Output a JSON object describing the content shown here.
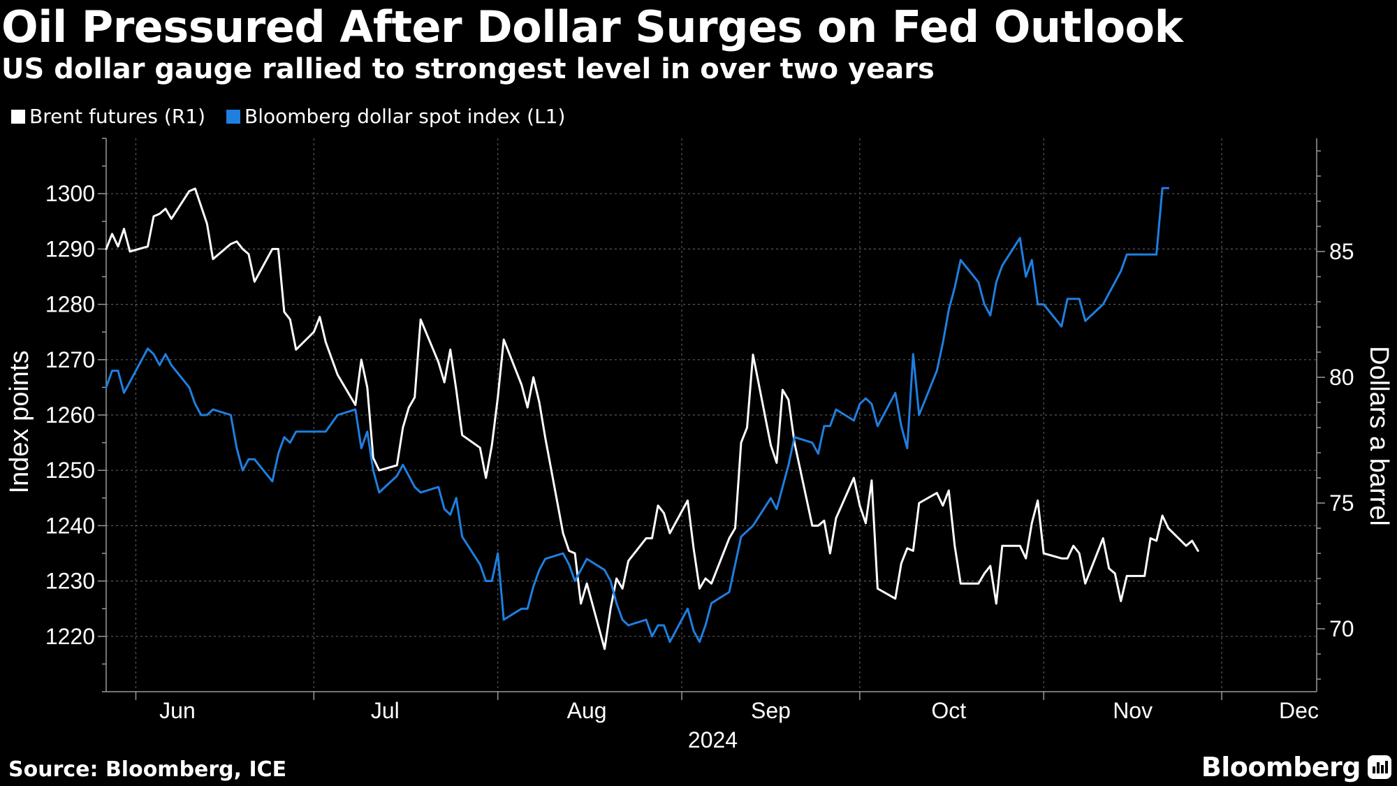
{
  "header": {
    "title": "Oil Pressured After Dollar Surges on Fed Outlook",
    "subtitle": "US dollar gauge rallied to strongest level in over two years"
  },
  "legend": {
    "items": [
      {
        "label": "Brent futures (R1)",
        "color": "#ffffff"
      },
      {
        "label": "Bloomberg dollar spot index (L1)",
        "color": "#1f7fe0"
      }
    ]
  },
  "footer": {
    "source": "Source: Bloomberg, ICE",
    "brand": "Bloomberg"
  },
  "chart_data": {
    "type": "line",
    "title": "Oil Pressured After Dollar Surges on Fed Outlook",
    "subtitle": "US dollar gauge rallied to strongest level in over two years",
    "x_type": "date",
    "year_label": "2024",
    "x_range": [
      "2024-05-27",
      "2024-12-17"
    ],
    "month_labels": [
      {
        "label": "Jun",
        "date": "2024-06-08"
      },
      {
        "label": "Jul",
        "date": "2024-07-13"
      },
      {
        "label": "Aug",
        "date": "2024-08-16"
      },
      {
        "label": "Sep",
        "date": "2024-09-16"
      },
      {
        "label": "Oct",
        "date": "2024-10-16"
      },
      {
        "label": "Nov",
        "date": "2024-11-16"
      },
      {
        "label": "Dec",
        "date": "2024-12-14"
      }
    ],
    "month_boundaries": [
      "2024-06-01",
      "2024-07-01",
      "2024-08-01",
      "2024-09-01",
      "2024-10-01",
      "2024-11-01",
      "2024-12-01"
    ],
    "left_axis": {
      "label": "Index points",
      "min": 1210,
      "max": 1310,
      "ticks": [
        1220,
        1230,
        1240,
        1250,
        1260,
        1270,
        1280,
        1290,
        1300
      ]
    },
    "right_axis": {
      "label": "Dollars a barrel",
      "min": 67.5,
      "max": 89.5,
      "ticks": [
        70,
        75,
        80,
        85
      ]
    },
    "grid": true,
    "legend_position": "top-left",
    "series": [
      {
        "name": "Brent futures (R1)",
        "axis": "right",
        "color": "#ffffff",
        "points": [
          [
            "2024-05-27",
            85.1
          ],
          [
            "2024-05-28",
            85.7
          ],
          [
            "2024-05-29",
            85.2
          ],
          [
            "2024-05-30",
            85.9
          ],
          [
            "2024-05-31",
            85.0
          ],
          [
            "2024-06-03",
            85.2
          ],
          [
            "2024-06-04",
            86.4
          ],
          [
            "2024-06-05",
            86.5
          ],
          [
            "2024-06-06",
            86.7
          ],
          [
            "2024-06-07",
            86.3
          ],
          [
            "2024-06-10",
            87.4
          ],
          [
            "2024-06-11",
            87.5
          ],
          [
            "2024-06-12",
            86.8
          ],
          [
            "2024-06-13",
            86.1
          ],
          [
            "2024-06-14",
            84.7
          ],
          [
            "2024-06-17",
            85.3
          ],
          [
            "2024-06-18",
            85.4
          ],
          [
            "2024-06-19",
            85.1
          ],
          [
            "2024-06-20",
            84.9
          ],
          [
            "2024-06-21",
            83.8
          ],
          [
            "2024-06-24",
            85.1
          ],
          [
            "2024-06-25",
            85.1
          ],
          [
            "2024-06-26",
            82.6
          ],
          [
            "2024-06-27",
            82.3
          ],
          [
            "2024-06-28",
            81.1
          ],
          [
            "2024-07-01",
            81.8
          ],
          [
            "2024-07-02",
            82.4
          ],
          [
            "2024-07-03",
            81.4
          ],
          [
            "2024-07-05",
            80.1
          ],
          [
            "2024-07-08",
            78.9
          ],
          [
            "2024-07-09",
            80.7
          ],
          [
            "2024-07-10",
            79.6
          ],
          [
            "2024-07-11",
            76.8
          ],
          [
            "2024-07-12",
            76.3
          ],
          [
            "2024-07-15",
            76.5
          ],
          [
            "2024-07-16",
            78.0
          ],
          [
            "2024-07-17",
            78.8
          ],
          [
            "2024-07-18",
            79.2
          ],
          [
            "2024-07-19",
            82.3
          ],
          [
            "2024-07-22",
            80.6
          ],
          [
            "2024-07-23",
            79.8
          ],
          [
            "2024-07-24",
            81.1
          ],
          [
            "2024-07-25",
            79.5
          ],
          [
            "2024-07-26",
            77.7
          ],
          [
            "2024-07-29",
            77.2
          ],
          [
            "2024-07-30",
            76.0
          ],
          [
            "2024-07-31",
            77.3
          ],
          [
            "2024-08-01",
            79.2
          ],
          [
            "2024-08-02",
            81.5
          ],
          [
            "2024-08-05",
            79.7
          ],
          [
            "2024-08-06",
            78.8
          ],
          [
            "2024-08-07",
            80.0
          ],
          [
            "2024-08-08",
            79.0
          ],
          [
            "2024-08-09",
            77.6
          ],
          [
            "2024-08-12",
            73.8
          ],
          [
            "2024-08-13",
            73.1
          ],
          [
            "2024-08-14",
            73.0
          ],
          [
            "2024-08-15",
            71.0
          ],
          [
            "2024-08-16",
            71.8
          ],
          [
            "2024-08-19",
            69.2
          ],
          [
            "2024-08-20",
            70.8
          ],
          [
            "2024-08-21",
            72.0
          ],
          [
            "2024-08-22",
            71.6
          ],
          [
            "2024-08-23",
            72.7
          ],
          [
            "2024-08-26",
            73.6
          ],
          [
            "2024-08-27",
            73.6
          ],
          [
            "2024-08-28",
            74.9
          ],
          [
            "2024-08-29",
            74.6
          ],
          [
            "2024-08-30",
            73.8
          ],
          [
            "2024-09-02",
            75.1
          ],
          [
            "2024-09-03",
            73.2
          ],
          [
            "2024-09-04",
            71.6
          ],
          [
            "2024-09-05",
            72.0
          ],
          [
            "2024-09-06",
            71.8
          ],
          [
            "2024-09-09",
            73.6
          ],
          [
            "2024-09-10",
            74.0
          ],
          [
            "2024-09-11",
            77.4
          ],
          [
            "2024-09-12",
            78.0
          ],
          [
            "2024-09-13",
            80.9
          ],
          [
            "2024-09-16",
            77.3
          ],
          [
            "2024-09-17",
            76.6
          ],
          [
            "2024-09-18",
            79.5
          ],
          [
            "2024-09-19",
            79.1
          ],
          [
            "2024-09-20",
            77.4
          ],
          [
            "2024-09-23",
            74.1
          ],
          [
            "2024-09-24",
            74.1
          ],
          [
            "2024-09-25",
            74.3
          ],
          [
            "2024-09-26",
            73.0
          ],
          [
            "2024-09-27",
            74.4
          ],
          [
            "2024-09-30",
            76.0
          ],
          [
            "2024-10-01",
            74.9
          ],
          [
            "2024-10-02",
            74.2
          ],
          [
            "2024-10-03",
            75.9
          ],
          [
            "2024-10-04",
            71.6
          ],
          [
            "2024-10-07",
            71.2
          ],
          [
            "2024-10-08",
            72.6
          ],
          [
            "2024-10-09",
            73.2
          ],
          [
            "2024-10-10",
            73.1
          ],
          [
            "2024-10-11",
            75.0
          ],
          [
            "2024-10-14",
            75.4
          ],
          [
            "2024-10-15",
            74.9
          ],
          [
            "2024-10-16",
            75.5
          ],
          [
            "2024-10-17",
            73.3
          ],
          [
            "2024-10-18",
            71.8
          ],
          [
            "2024-10-21",
            71.8
          ],
          [
            "2024-10-22",
            72.2
          ],
          [
            "2024-10-23",
            72.5
          ],
          [
            "2024-10-24",
            71.0
          ],
          [
            "2024-10-25",
            73.3
          ],
          [
            "2024-10-28",
            73.3
          ],
          [
            "2024-10-29",
            72.8
          ],
          [
            "2024-10-30",
            74.2
          ],
          [
            "2024-10-31",
            75.1
          ],
          [
            "2024-11-01",
            73.0
          ],
          [
            "2024-11-04",
            72.8
          ],
          [
            "2024-11-05",
            72.8
          ],
          [
            "2024-11-06",
            73.3
          ],
          [
            "2024-11-07",
            73.0
          ],
          [
            "2024-11-08",
            71.8
          ],
          [
            "2024-11-11",
            73.6
          ],
          [
            "2024-11-12",
            72.4
          ],
          [
            "2024-11-13",
            72.2
          ],
          [
            "2024-11-14",
            71.1
          ],
          [
            "2024-11-15",
            72.1
          ],
          [
            "2024-11-18",
            72.1
          ],
          [
            "2024-11-19",
            73.6
          ],
          [
            "2024-11-20",
            73.5
          ],
          [
            "2024-11-21",
            74.5
          ],
          [
            "2024-11-22",
            74.0
          ],
          [
            "2024-11-25",
            73.3
          ],
          [
            "2024-11-26",
            73.5
          ],
          [
            "2024-11-27",
            73.1
          ]
        ]
      },
      {
        "name": "Bloomberg dollar spot index (L1)",
        "axis": "left",
        "color": "#1f7fe0",
        "points": [
          [
            "2024-05-27",
            1265
          ],
          [
            "2024-05-28",
            1268
          ],
          [
            "2024-05-29",
            1268
          ],
          [
            "2024-05-30",
            1264
          ],
          [
            "2024-05-31",
            1266
          ],
          [
            "2024-06-03",
            1272
          ],
          [
            "2024-06-04",
            1271
          ],
          [
            "2024-06-05",
            1269
          ],
          [
            "2024-06-06",
            1271
          ],
          [
            "2024-06-07",
            1269
          ],
          [
            "2024-06-10",
            1265
          ],
          [
            "2024-06-11",
            1262
          ],
          [
            "2024-06-12",
            1260
          ],
          [
            "2024-06-13",
            1260
          ],
          [
            "2024-06-14",
            1261
          ],
          [
            "2024-06-17",
            1260
          ],
          [
            "2024-06-18",
            1254
          ],
          [
            "2024-06-19",
            1250
          ],
          [
            "2024-06-20",
            1252
          ],
          [
            "2024-06-21",
            1252
          ],
          [
            "2024-06-24",
            1248
          ],
          [
            "2024-06-25",
            1253
          ],
          [
            "2024-06-26",
            1256
          ],
          [
            "2024-06-27",
            1255
          ],
          [
            "2024-06-28",
            1257
          ],
          [
            "2024-07-01",
            1257
          ],
          [
            "2024-07-02",
            1257
          ],
          [
            "2024-07-03",
            1257
          ],
          [
            "2024-07-05",
            1260
          ],
          [
            "2024-07-08",
            1261
          ],
          [
            "2024-07-09",
            1254
          ],
          [
            "2024-07-10",
            1257
          ],
          [
            "2024-07-11",
            1250
          ],
          [
            "2024-07-12",
            1246
          ],
          [
            "2024-07-15",
            1249
          ],
          [
            "2024-07-16",
            1251
          ],
          [
            "2024-07-17",
            1249
          ],
          [
            "2024-07-18",
            1247
          ],
          [
            "2024-07-19",
            1246
          ],
          [
            "2024-07-22",
            1247
          ],
          [
            "2024-07-23",
            1243
          ],
          [
            "2024-07-24",
            1242
          ],
          [
            "2024-07-25",
            1245
          ],
          [
            "2024-07-26",
            1238
          ],
          [
            "2024-07-29",
            1233
          ],
          [
            "2024-07-30",
            1230
          ],
          [
            "2024-07-31",
            1230
          ],
          [
            "2024-08-01",
            1235
          ],
          [
            "2024-08-02",
            1223
          ],
          [
            "2024-08-05",
            1225
          ],
          [
            "2024-08-06",
            1225
          ],
          [
            "2024-08-07",
            1229
          ],
          [
            "2024-08-08",
            1232
          ],
          [
            "2024-08-09",
            1234
          ],
          [
            "2024-08-12",
            1235
          ],
          [
            "2024-08-13",
            1233
          ],
          [
            "2024-08-14",
            1230
          ],
          [
            "2024-08-15",
            1232
          ],
          [
            "2024-08-16",
            1234
          ],
          [
            "2024-08-19",
            1232
          ],
          [
            "2024-08-20",
            1230
          ],
          [
            "2024-08-21",
            1226
          ],
          [
            "2024-08-22",
            1223
          ],
          [
            "2024-08-23",
            1222
          ],
          [
            "2024-08-26",
            1223
          ],
          [
            "2024-08-27",
            1220
          ],
          [
            "2024-08-28",
            1222
          ],
          [
            "2024-08-29",
            1222
          ],
          [
            "2024-08-30",
            1219
          ],
          [
            "2024-09-02",
            1225
          ],
          [
            "2024-09-03",
            1221
          ],
          [
            "2024-09-04",
            1219
          ],
          [
            "2024-09-05",
            1222
          ],
          [
            "2024-09-06",
            1226
          ],
          [
            "2024-09-09",
            1228
          ],
          [
            "2024-09-10",
            1233
          ],
          [
            "2024-09-11",
            1238
          ],
          [
            "2024-09-12",
            1239
          ],
          [
            "2024-09-13",
            1240
          ],
          [
            "2024-09-16",
            1245
          ],
          [
            "2024-09-17",
            1243
          ],
          [
            "2024-09-18",
            1247
          ],
          [
            "2024-09-19",
            1251
          ],
          [
            "2024-09-20",
            1256
          ],
          [
            "2024-09-23",
            1255
          ],
          [
            "2024-09-24",
            1253
          ],
          [
            "2024-09-25",
            1258
          ],
          [
            "2024-09-26",
            1258
          ],
          [
            "2024-09-27",
            1261
          ],
          [
            "2024-09-30",
            1259
          ],
          [
            "2024-10-01",
            1262
          ],
          [
            "2024-10-02",
            1263
          ],
          [
            "2024-10-03",
            1262
          ],
          [
            "2024-10-04",
            1258
          ],
          [
            "2024-10-07",
            1264
          ],
          [
            "2024-10-08",
            1258
          ],
          [
            "2024-10-09",
            1254
          ],
          [
            "2024-10-10",
            1271
          ],
          [
            "2024-10-11",
            1260
          ],
          [
            "2024-10-14",
            1268
          ],
          [
            "2024-10-15",
            1273
          ],
          [
            "2024-10-16",
            1279
          ],
          [
            "2024-10-17",
            1283
          ],
          [
            "2024-10-18",
            1288
          ],
          [
            "2024-10-21",
            1284
          ],
          [
            "2024-10-22",
            1280
          ],
          [
            "2024-10-23",
            1278
          ],
          [
            "2024-10-24",
            1284
          ],
          [
            "2024-10-25",
            1287
          ],
          [
            "2024-10-28",
            1292
          ],
          [
            "2024-10-29",
            1285
          ],
          [
            "2024-10-30",
            1288
          ],
          [
            "2024-10-31",
            1280
          ],
          [
            "2024-11-01",
            1280
          ],
          [
            "2024-11-04",
            1276
          ],
          [
            "2024-11-05",
            1281
          ],
          [
            "2024-11-06",
            1281
          ],
          [
            "2024-11-07",
            1281
          ],
          [
            "2024-11-08",
            1277
          ],
          [
            "2024-11-11",
            1280
          ],
          [
            "2024-11-12",
            1282
          ],
          [
            "2024-11-13",
            1284
          ],
          [
            "2024-11-14",
            1286
          ],
          [
            "2024-11-15",
            1289
          ],
          [
            "2024-11-18",
            1289
          ],
          [
            "2024-11-19",
            1289
          ],
          [
            "2024-11-20",
            1289
          ],
          [
            "2024-11-21",
            1301
          ],
          [
            "2024-11-22",
            1301
          ]
        ]
      }
    ]
  }
}
